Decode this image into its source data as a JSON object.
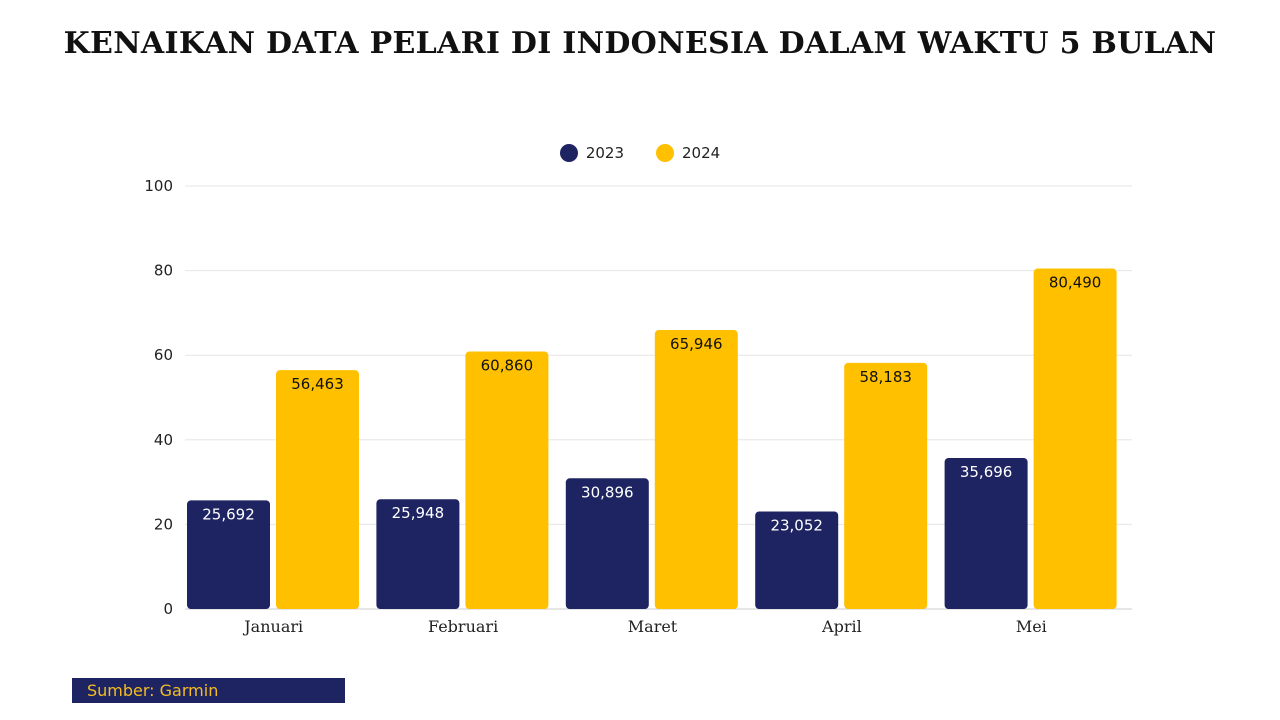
{
  "title": "KENAIKAN DATA PELARI DI INDONESIA DALAM WAKTU 5 BULAN",
  "source": "Sumber: Garmin",
  "colors": {
    "s2023": "#1e2462",
    "s2024": "#ffc000"
  },
  "chart_data": {
    "type": "bar",
    "categories": [
      "Januari",
      "Februari",
      "Maret",
      "April",
      "Mei"
    ],
    "series": [
      {
        "name": "2023",
        "values": [
          25.692,
          25.948,
          30.896,
          23.052,
          35.696
        ],
        "labels": [
          "25,692",
          "25,948",
          "30,896",
          "23,052",
          "35,696"
        ]
      },
      {
        "name": "2024",
        "values": [
          56.463,
          60.86,
          65.946,
          58.183,
          80.49
        ],
        "labels": [
          "56,463",
          "60,860",
          "65,946",
          "58,183",
          "80,490"
        ]
      }
    ],
    "ylim": [
      0,
      100
    ],
    "yticks": [
      0,
      20,
      40,
      60,
      80,
      100
    ],
    "grid": true,
    "legend": "top-center"
  }
}
